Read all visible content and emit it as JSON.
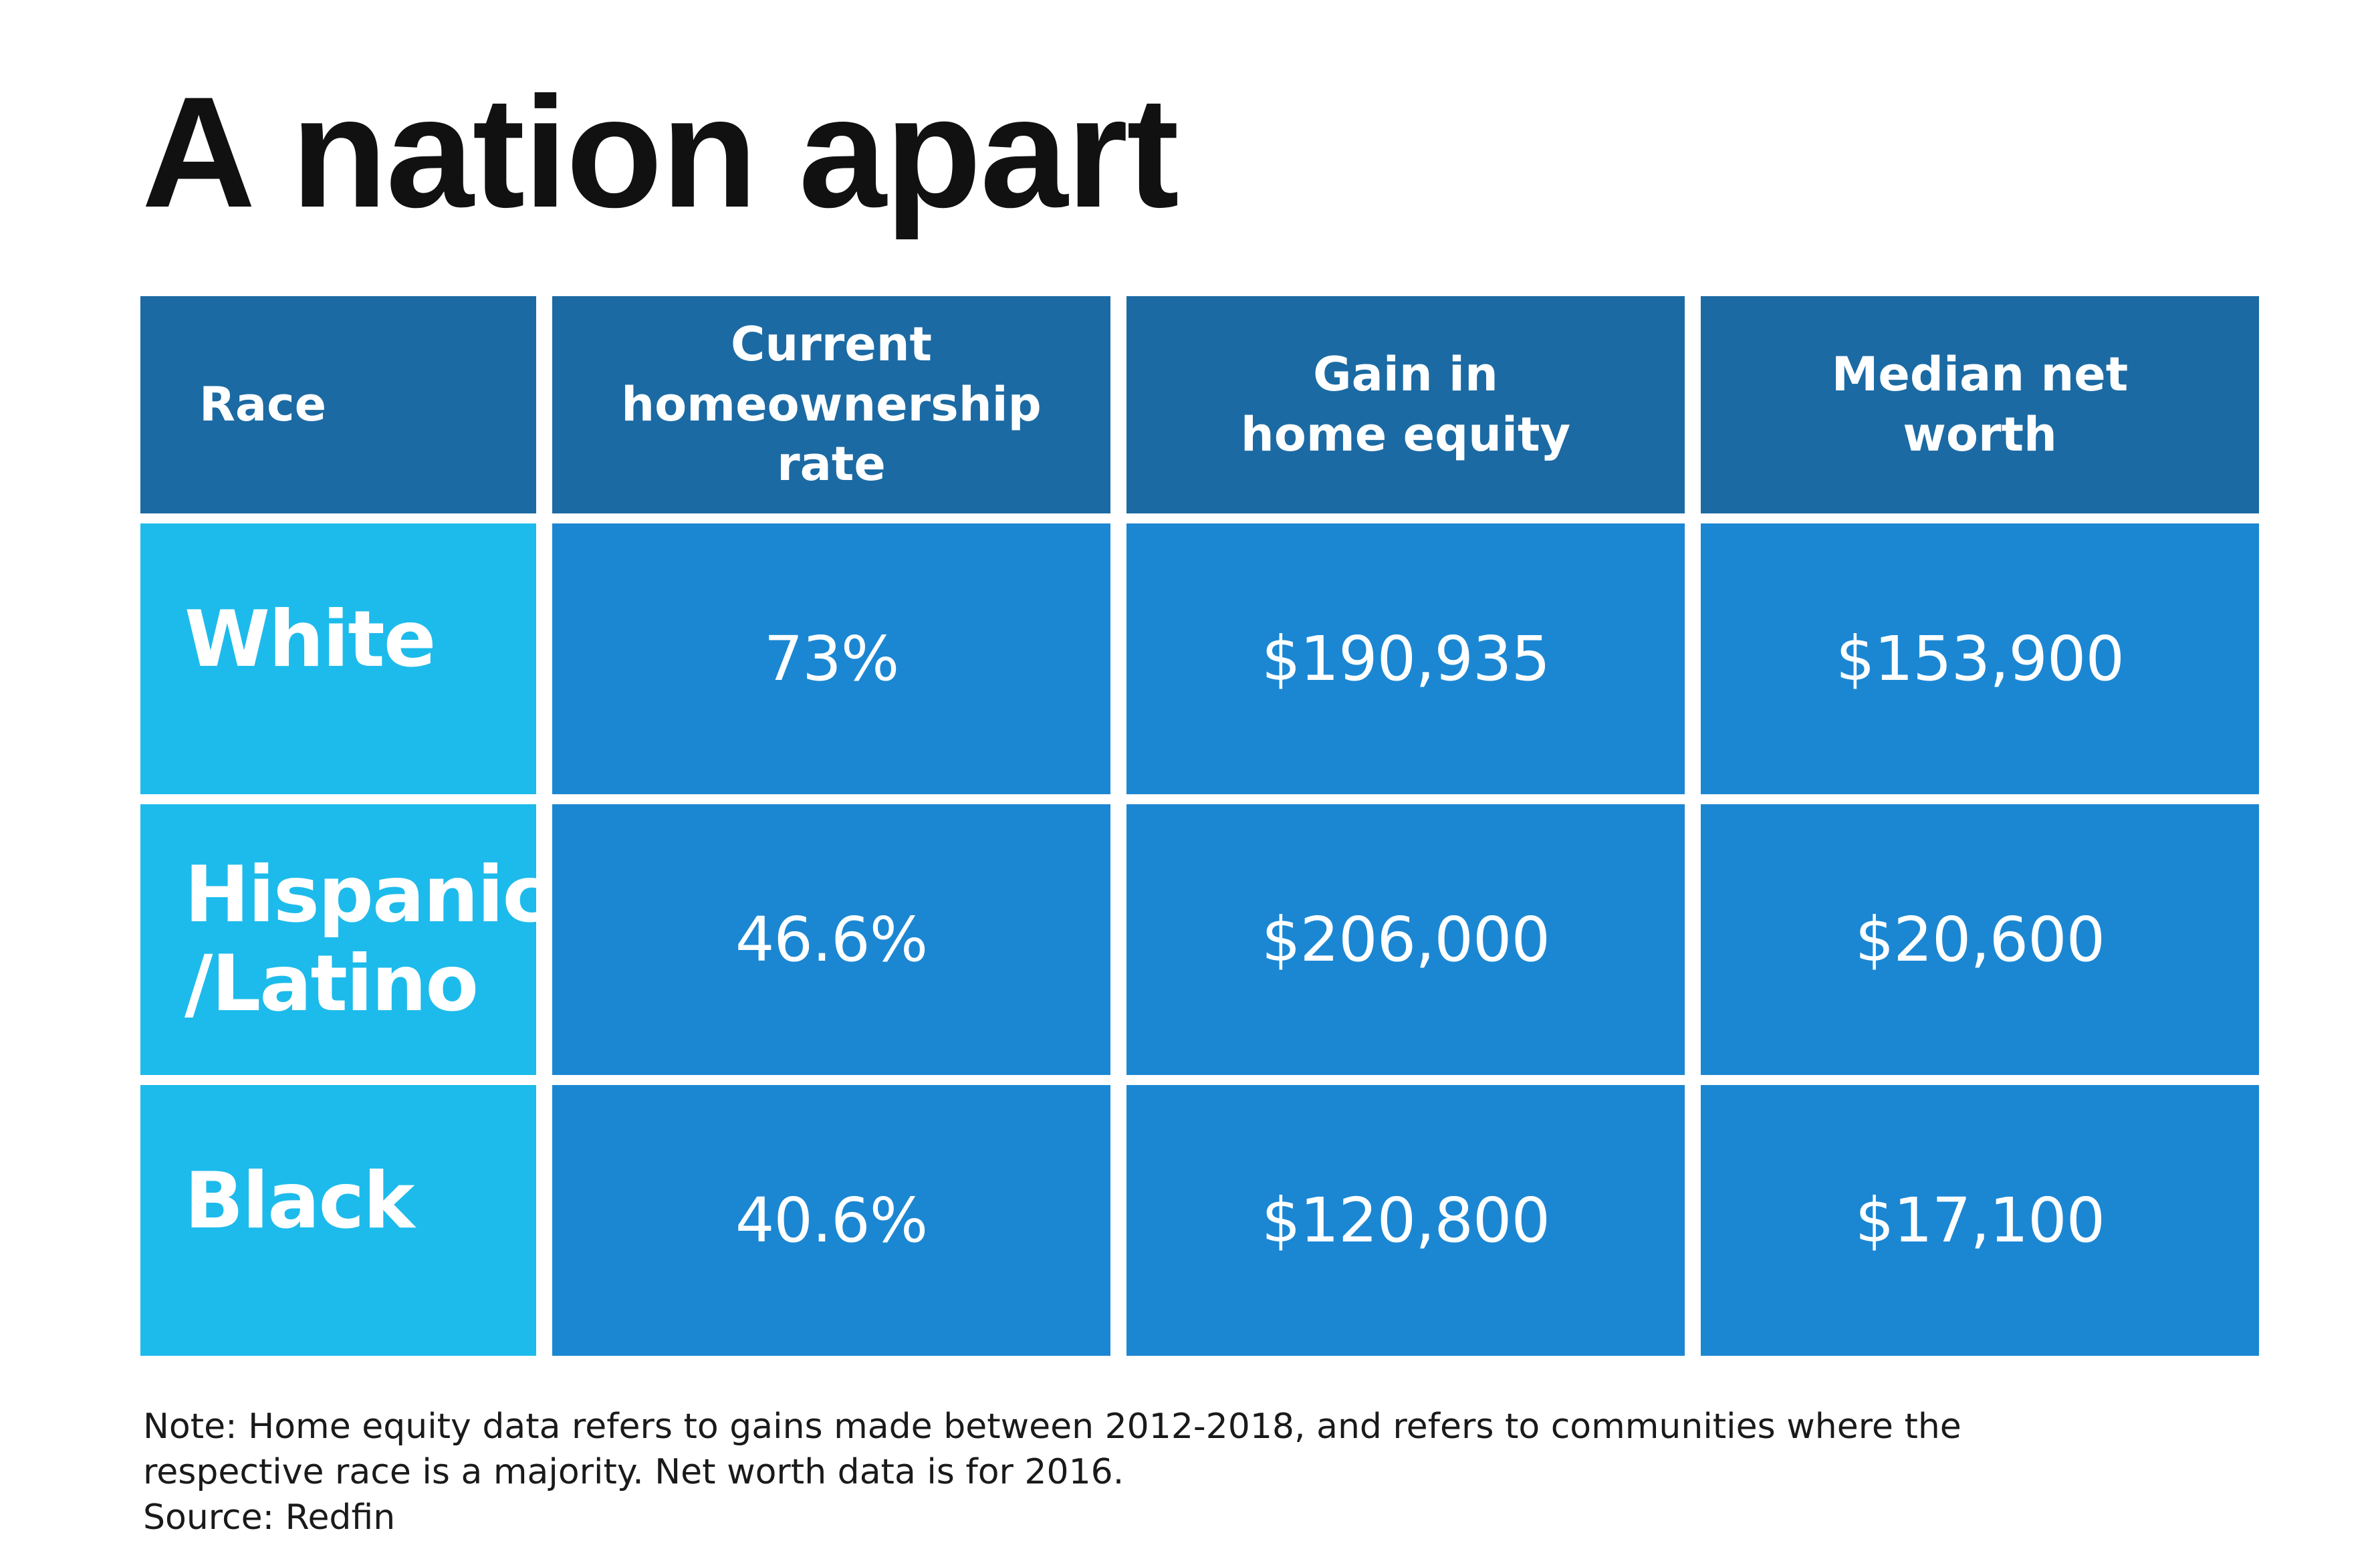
{
  "title": "A nation apart",
  "chart_data": {
    "type": "table",
    "columns": [
      "Race",
      "Current homeownership rate",
      "Gain in home equity",
      "Median net worth"
    ],
    "rows": [
      {
        "race": "White",
        "homeownership_rate": "73%",
        "home_equity_gain": "$190,935",
        "median_net_worth": "$153,900"
      },
      {
        "race": "Hispanic /Latino",
        "homeownership_rate": "46.6%",
        "home_equity_gain": "$206,000",
        "median_net_worth": "$20,600"
      },
      {
        "race": "Black",
        "homeownership_rate": "40.6%",
        "home_equity_gain": "$120,800",
        "median_net_worth": "$17,100"
      }
    ]
  },
  "notes": {
    "line1": "Note: Home equity data refers to gains made between 2012-2018, and refers to communities where the",
    "line2": "respective race is a majority. Net worth data is for 2016.",
    "source": "Source: Redfin"
  },
  "colors": {
    "header_bg": "#1b6aa3",
    "race_bg": "#1dbbeb",
    "value_bg": "#1b87d3",
    "title_text": "#111111"
  }
}
